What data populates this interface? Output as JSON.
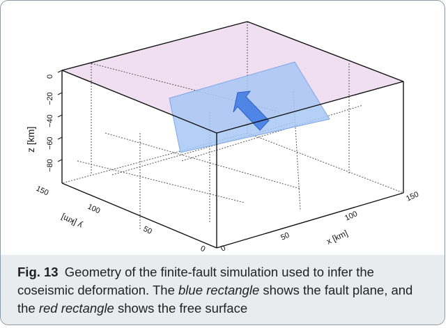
{
  "figure": {
    "axes": {
      "z_label": "z [km]",
      "y_label": "y [km]",
      "x_label": "x [km]",
      "z_ticks": [
        "0",
        "−20",
        "−40",
        "−60",
        "−80"
      ],
      "y_ticks": [
        "150",
        "100",
        "50",
        "0"
      ],
      "x_ticks": [
        "0",
        "50",
        "100",
        "150"
      ]
    },
    "colors": {
      "free_surface": "#e8c8e0",
      "fault_plane": "#8fb8f0",
      "arrow": "#5b8fe8"
    }
  },
  "caption": {
    "label": "Fig. 13",
    "text_1": "Geometry of the finite-fault simulation used to infer the coseismic deformation. The ",
    "blue_rect": "blue rectangle",
    "text_2": " shows the fault plane, and the ",
    "red_rect": "red rectangle",
    "text_3": " shows the free surface"
  }
}
